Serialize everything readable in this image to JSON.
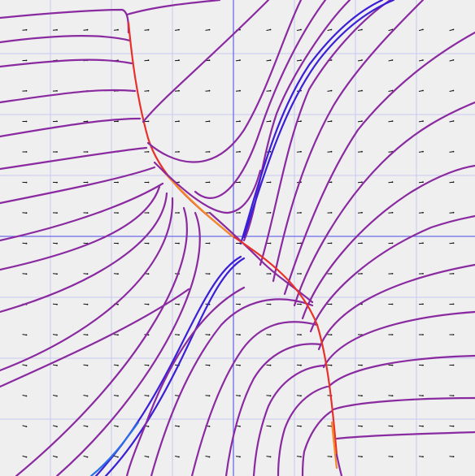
{
  "chart_data": {
    "type": "stream_plot",
    "title": "",
    "xlabel": "",
    "ylabel": "",
    "grid": true,
    "axes_visible": true,
    "tick_labels_visible": false,
    "field_arrows": true,
    "color_scale": {
      "low": "#2b6fe6",
      "mid": "#3b1fd6",
      "base": "#8a2aa0",
      "high": "#e8312a",
      "peak": "#f28a2a"
    }
  }
}
